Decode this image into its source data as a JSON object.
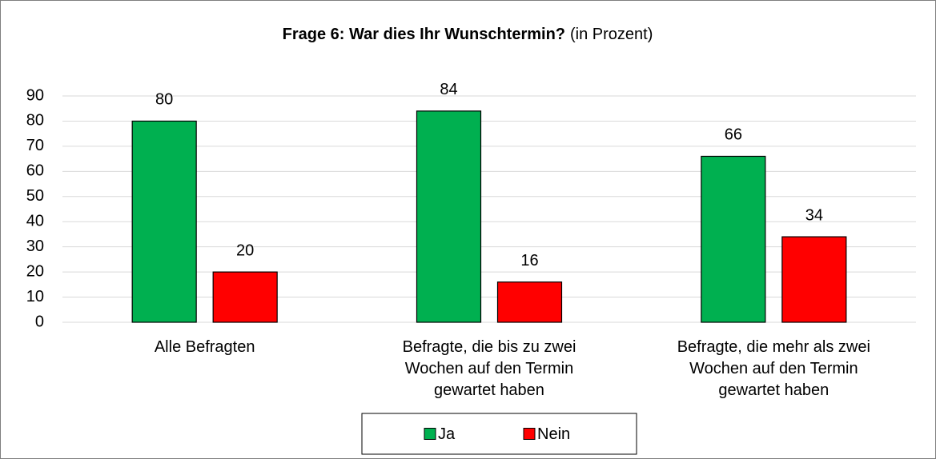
{
  "chart_data": {
    "type": "bar",
    "title": "Frage 6: War dies Ihr Wunschtermin?",
    "title_note": "(in Prozent)",
    "categories": [
      "Alle Befragten",
      "Befragte, die bis zu zwei Wochen auf den Termin gewartet haben",
      "Befragte, die mehr als zwei Wochen auf den Termin gewartet haben"
    ],
    "series": [
      {
        "name": "Ja",
        "color": "#00b050",
        "values": [
          80,
          84,
          66
        ]
      },
      {
        "name": "Nein",
        "color": "#ff0000",
        "values": [
          20,
          16,
          34
        ]
      }
    ],
    "ylim": [
      0,
      90
    ],
    "yticks": [
      0,
      10,
      20,
      30,
      40,
      50,
      60,
      70,
      80,
      90
    ],
    "grid": true,
    "legend": "bottom"
  }
}
